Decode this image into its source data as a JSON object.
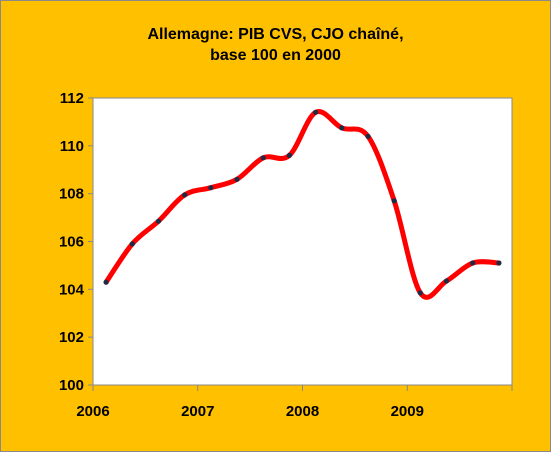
{
  "chart_data": {
    "type": "line",
    "title_lines": [
      "Allemagne: PIB  CVS, CJO chaîné,",
      "base 100 en 2000"
    ],
    "xlabel": "",
    "ylabel": "",
    "xlim": [
      2006,
      2010
    ],
    "ylim": [
      100,
      112
    ],
    "x_ticks": [
      2006,
      2007,
      2008,
      2009
    ],
    "x_tick_labels": [
      "2006",
      "2007",
      "2008",
      "2009"
    ],
    "y_ticks": [
      100,
      102,
      104,
      106,
      108,
      110,
      112
    ],
    "y_tick_labels": [
      "100",
      "102",
      "104",
      "106",
      "108",
      "110",
      "112"
    ],
    "grid": false,
    "legend": "none",
    "colors": {
      "background": "#ffc000",
      "plot_area": "#ffffff",
      "line": "#ff0000",
      "marker": "#1f2a44"
    },
    "series": [
      {
        "x": [
          2006.125,
          2006.375,
          2006.625,
          2006.875,
          2007.125,
          2007.375,
          2007.625,
          2007.875,
          2008.125,
          2008.375,
          2008.625,
          2008.875,
          2009.125,
          2009.375,
          2009.625,
          2009.875
        ],
        "values": [
          104.3,
          105.9,
          106.85,
          107.95,
          108.25,
          108.6,
          109.5,
          109.6,
          111.4,
          110.75,
          110.4,
          107.7,
          103.85,
          104.35,
          105.1,
          105.1
        ]
      }
    ]
  }
}
